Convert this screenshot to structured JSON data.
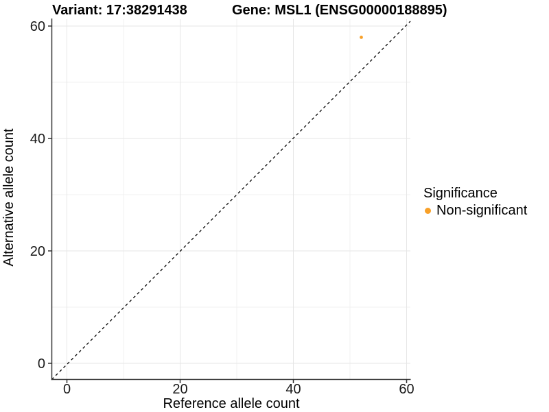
{
  "chart_data": {
    "type": "scatter",
    "titles": {
      "left": "Variant: 17:38291438",
      "right": "Gene: MSL1 (ENSG00000188895)"
    },
    "xlabel": "Reference allele count",
    "ylabel": "Alternative allele count",
    "xlim": [
      0,
      60
    ],
    "ylim": [
      0,
      60
    ],
    "x_ticks": [
      "0",
      "20",
      "40",
      "60"
    ],
    "y_ticks": [
      "0",
      "20",
      "40",
      "60"
    ],
    "minor_gridlines": [
      10,
      30,
      50
    ],
    "grid": "major and minor light-gray gridlines on white panel",
    "reference_line": {
      "type": "identity y=x",
      "style": "dashed",
      "color": "#000000"
    },
    "points": [
      {
        "x": 52,
        "y": 58,
        "significance": "Non-significant"
      }
    ],
    "point_color": "#F8A028",
    "legend": {
      "title": "Significance",
      "position": "right",
      "items": [
        {
          "label": "Non-significant",
          "color": "#F8A028"
        }
      ]
    }
  }
}
